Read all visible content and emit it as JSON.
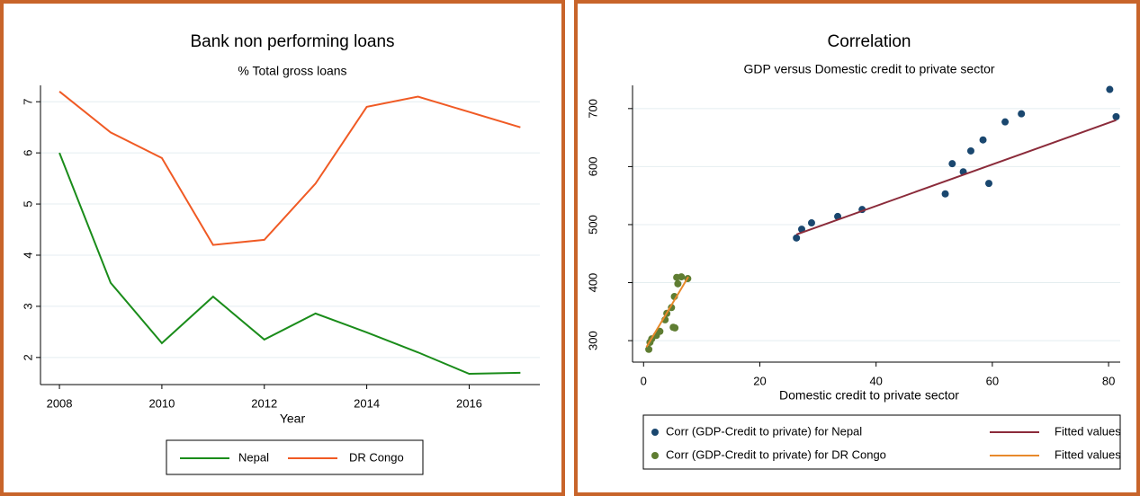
{
  "chart_data": [
    {
      "type": "line",
      "title": "Bank non performing loans",
      "subtitle": "% Total gross loans",
      "x_label": "Year",
      "x": [
        2008,
        2009,
        2010,
        2011,
        2012,
        2013,
        2014,
        2015,
        2016,
        2017
      ],
      "series": [
        {
          "name": "Nepal",
          "color": "#1a8c1a",
          "values": [
            6.0,
            3.46,
            2.28,
            3.19,
            2.35,
            2.86,
            2.49,
            2.1,
            1.68,
            1.7
          ]
        },
        {
          "name": "DR Congo",
          "color": "#f05a24",
          "values": [
            7.2,
            6.4,
            5.9,
            4.2,
            4.3,
            5.4,
            6.9,
            7.1,
            6.8,
            6.5
          ]
        }
      ],
      "xlim": [
        2007.63,
        2017.38
      ],
      "xticks": [
        2008,
        2010,
        2012,
        2014,
        2016
      ],
      "ylim": [
        1.47,
        7.32
      ],
      "yticks": [
        2,
        3,
        4,
        5,
        6,
        7
      ],
      "grid": true
    },
    {
      "type": "scatter",
      "title": "Correlation",
      "subtitle": "GDP versus Domestic credit to private sector",
      "x_label": "Domestic credit to private sector",
      "series": [
        {
          "name": "Corr (GDP-Credit to private) for Nepal",
          "type": "scatter",
          "color": "#1a476f",
          "x": [
            26.3,
            27.2,
            28.9,
            33.4,
            37.6,
            51.9,
            53.1,
            55.0,
            56.3,
            58.4,
            59.4,
            62.2,
            65.0,
            80.2,
            81.3
          ],
          "values": [
            477,
            492,
            503,
            514,
            526,
            553,
            605,
            591,
            627,
            646,
            571,
            677,
            691,
            733,
            686
          ]
        },
        {
          "name": "Fitted values",
          "type": "line",
          "color": "#8b2b3a",
          "x": [
            26.3,
            81.3
          ],
          "values": [
            483,
            680
          ]
        },
        {
          "name": "Corr (GDP-Credit to private) for DR Congo",
          "type": "scatter",
          "color": "#5f7d32",
          "x": [
            0.9,
            1.1,
            1.4,
            2.2,
            2.8,
            3.7,
            4.0,
            4.8,
            5.3,
            5.9,
            5.7,
            6.5,
            7.6,
            5.1,
            5.4
          ],
          "values": [
            285,
            297,
            303,
            309,
            316,
            336,
            347,
            357,
            376,
            398,
            409,
            410,
            407,
            323,
            322
          ]
        },
        {
          "name": "Fitted values",
          "type": "line",
          "color": "#e8892b",
          "x": [
            0.5,
            7.7
          ],
          "values": [
            289,
            410
          ]
        }
      ],
      "xlim": [
        -1.9,
        82
      ],
      "xticks": [
        0,
        20,
        40,
        60,
        80
      ],
      "ylim": [
        263,
        740
      ],
      "yticks": [
        300,
        400,
        500,
        600,
        700
      ],
      "grid": true
    }
  ]
}
